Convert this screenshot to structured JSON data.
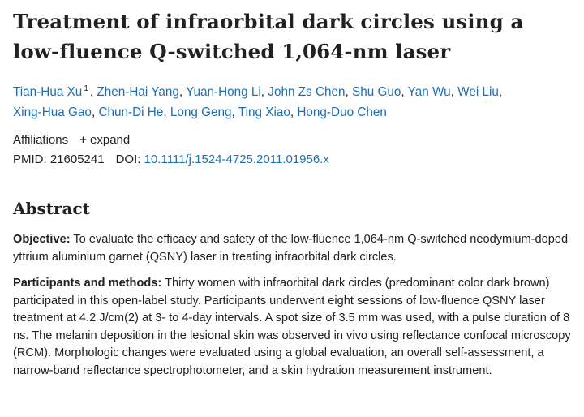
{
  "article": {
    "title": "Treatment of infraorbital dark circles using a low-fluence Q-switched 1,064-nm laser",
    "authors": [
      "Tian-Hua Xu",
      "Zhen-Hai Yang",
      "Yuan-Hong Li",
      "John Zs Chen",
      "Shu Guo",
      "Yan Wu",
      "Wei Liu",
      "Xing-Hua Gao",
      "Chun-Di He",
      "Long Geng",
      "Ting Xiao",
      "Hong-Duo Chen"
    ],
    "first_author_affiliation_marker": "1",
    "affiliations_label": "Affiliations",
    "expand_label": "expand",
    "pmid_label": "PMID:",
    "pmid": "21605241",
    "doi_label": "DOI:",
    "doi": "10.1111/j.1524-4725.2011.01956.x"
  },
  "abstract": {
    "heading": "Abstract",
    "sections": [
      {
        "label": "Objective:",
        "text": "To evaluate the efficacy and safety of the low-fluence 1,064-nm Q-switched neodymium-doped yttrium aluminium garnet (QSNY) laser in treating infraorbital dark circles."
      },
      {
        "label": "Participants and methods:",
        "text": "Thirty women with infraorbital dark circles (predominant color dark brown) participated in this open-label study. Participants underwent eight sessions of low-fluence QSNY laser treatment at 4.2 J/cm(2) at 3- to 4-day intervals. A spot size of 3.5 mm was used, with a pulse duration of 8 ns. The melanin deposition in the lesional skin was observed in vivo using reflectance confocal microscopy (RCM). Morphologic changes were evaluated using a global evaluation, an overall self-assessment, a narrow-band reflectance spectrophotometer, and a skin hydration measurement instrument."
      }
    ]
  },
  "colors": {
    "link": "#1b6fb4",
    "text": "#212121"
  },
  "icons": {
    "expand": "plus-icon"
  }
}
